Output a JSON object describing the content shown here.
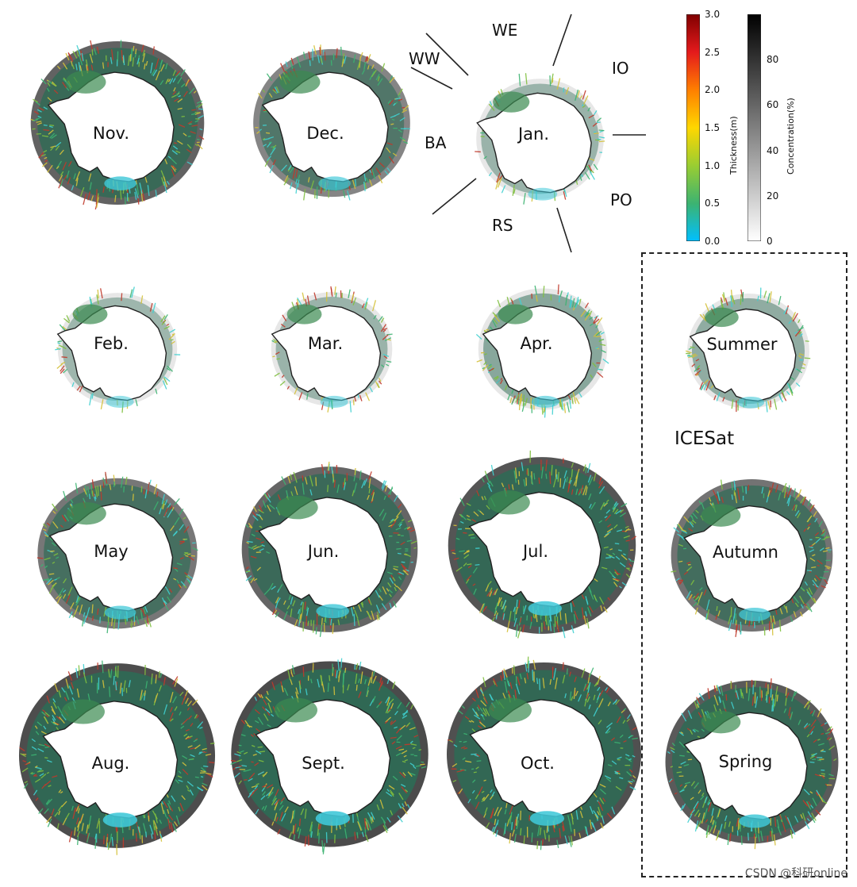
{
  "maps": [
    {
      "id": "nov",
      "label": "Nov.",
      "ice_cover": 0.78
    },
    {
      "id": "dec",
      "label": "Dec.",
      "ice_cover": 0.45
    },
    {
      "id": "jan",
      "label": "Jan.",
      "ice_cover": 0.12
    },
    {
      "id": "feb",
      "label": "Feb.",
      "ice_cover": 0.08
    },
    {
      "id": "mar",
      "label": "Mar.",
      "ice_cover": 0.12
    },
    {
      "id": "apr",
      "label": "Apr.",
      "ice_cover": 0.3
    },
    {
      "id": "may",
      "label": "May",
      "ice_cover": 0.58
    },
    {
      "id": "jun",
      "label": "Jun.",
      "ice_cover": 0.75
    },
    {
      "id": "jul",
      "label": "Jul.",
      "ice_cover": 0.9
    },
    {
      "id": "aug",
      "label": "Aug.",
      "ice_cover": 0.98
    },
    {
      "id": "sept",
      "label": "Sept.",
      "ice_cover": 1.0
    },
    {
      "id": "oct",
      "label": "Oct.",
      "ice_cover": 0.95
    },
    {
      "id": "summer",
      "label": "Summer",
      "ice_cover": 0.22
    },
    {
      "id": "autumn",
      "label": "Autumn",
      "ice_cover": 0.62
    },
    {
      "id": "spring",
      "label": "Spring",
      "ice_cover": 0.85
    }
  ],
  "regions": {
    "we": "WE",
    "ww": "WW",
    "io": "IO",
    "ba": "BA",
    "po": "PO",
    "rs": "RS"
  },
  "icesat_label": "ICESat",
  "thickness_colorbar": {
    "title": "Thickness(m)",
    "ticks": [
      "3.0",
      "2.5",
      "2.0",
      "1.5",
      "1.0",
      "0.5",
      "0.0"
    ],
    "colors": [
      "#800000",
      "#e41a1c",
      "#ff7f00",
      "#ffd700",
      "#9acd32",
      "#3cb371",
      "#00bfff"
    ]
  },
  "concentration_colorbar": {
    "title": "Concentration(%)",
    "ticks": [
      "80",
      "60",
      "40",
      "20",
      "0"
    ],
    "colors": [
      "#000000",
      "#ffffff"
    ]
  },
  "watermark": "CSDN @科研online",
  "colors": {
    "continent": "#ffffff",
    "ice_dark": "#1a1a1a",
    "ice_mid": "#2e6b55",
    "vector_green": "#3cb371",
    "vector_yellow": "#d4c13a",
    "vector_red": "#c0392b",
    "vector_cyan": "#40d0d0"
  }
}
